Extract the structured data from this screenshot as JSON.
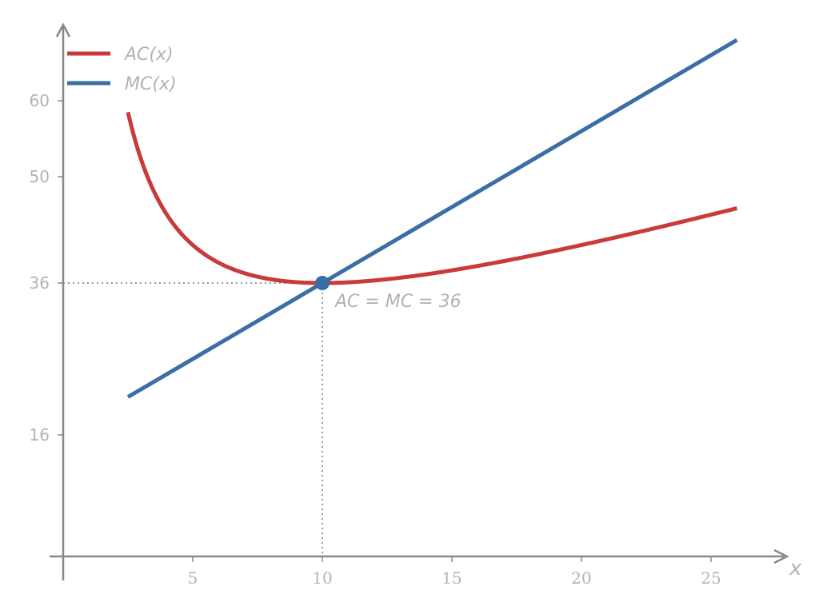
{
  "chart_data": {
    "type": "line",
    "xlabel": "x",
    "ylabel": "",
    "xlim": [
      -0.5,
      28
    ],
    "ylim": [
      0,
      70
    ],
    "x_ticks": [
      "5",
      "10",
      "15",
      "20",
      "25"
    ],
    "y_ticks": [
      "16",
      "36",
      "50",
      "60"
    ],
    "grid": false,
    "legend_position": "top-left",
    "series": [
      {
        "name": "AC(x)",
        "color": "#c93a3a",
        "function": "x + 100/x + 16",
        "x": [
          2.5,
          3,
          4,
          5,
          6,
          7,
          8,
          9,
          10,
          11,
          12,
          14,
          16,
          18,
          20,
          22,
          24,
          26
        ],
        "y": [
          58.5,
          52.3,
          45.0,
          41.0,
          38.7,
          37.3,
          36.5,
          36.1,
          36.0,
          36.1,
          36.3,
          37.1,
          38.3,
          39.6,
          41.0,
          42.5,
          44.2,
          45.8
        ]
      },
      {
        "name": "MC(x)",
        "color": "#3a6ea5",
        "function": "2x + 16",
        "x": [
          2.5,
          26
        ],
        "y": [
          21,
          68
        ]
      }
    ],
    "annotations": [
      {
        "text": "AC = MC = 36",
        "x": 10,
        "y": 36
      }
    ]
  }
}
